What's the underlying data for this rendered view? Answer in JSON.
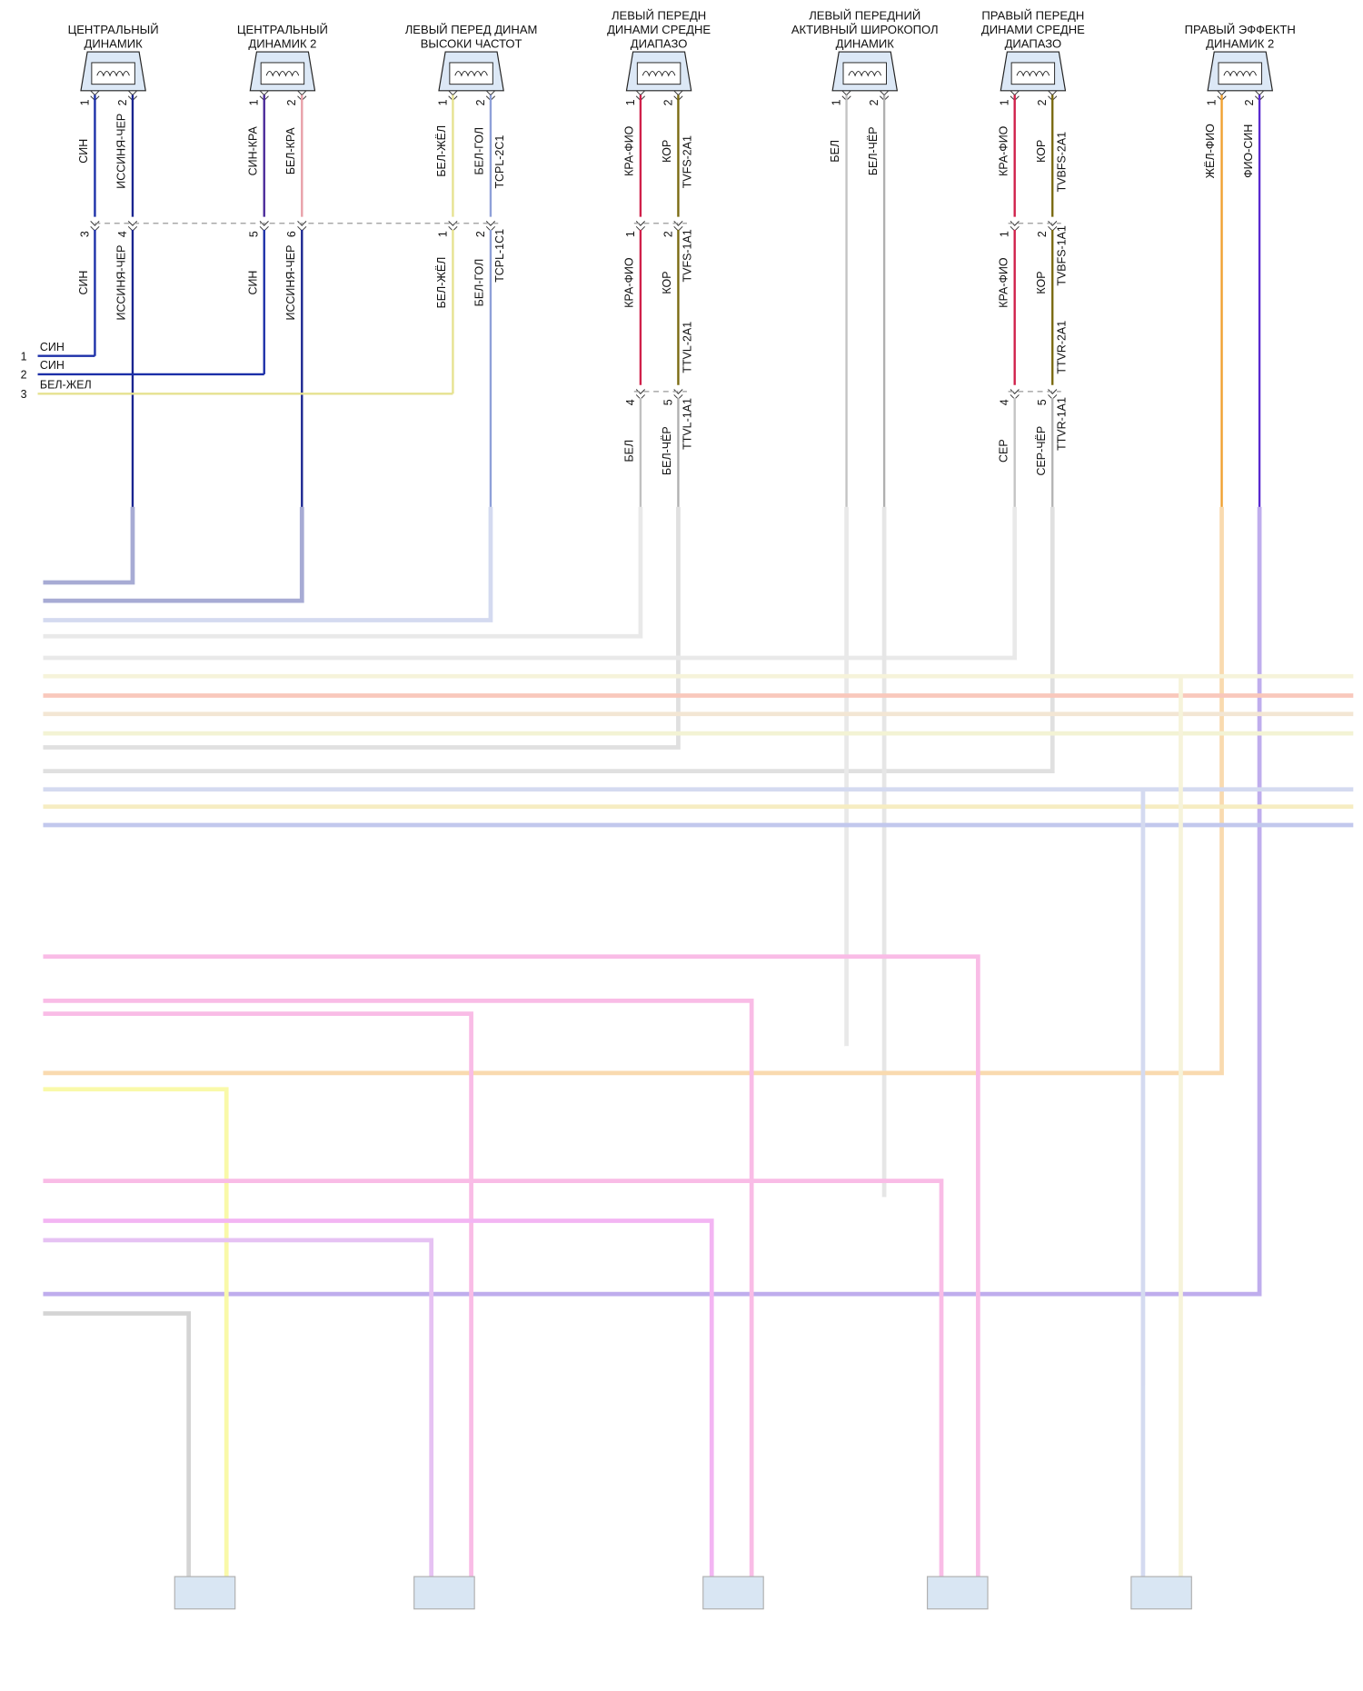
{
  "speakers": [
    {
      "title": [
        "ЦЕНТРАЛЬНЫЙ",
        "ДИНАМИК"
      ],
      "pins": [
        1,
        2
      ],
      "wires": [
        "СИН",
        "ИССИНЯ-ЧЕР"
      ],
      "segments": [
        {
          "pins": [
            3,
            4
          ],
          "wires": [
            "СИН",
            "ИССИНЯ-ЧЕР"
          ]
        }
      ]
    },
    {
      "title": [
        "ЦЕНТРАЛЬНЫЙ",
        "ДИНАМИК 2"
      ],
      "pins": [
        1,
        2
      ],
      "wires": [
        "СИН-КРА",
        "БЕЛ-КРА"
      ],
      "segments": [
        {
          "pins": [
            5,
            6
          ],
          "wires": [
            "СИН",
            "ИССИНЯ-ЧЕР"
          ]
        }
      ]
    },
    {
      "title": [
        "ЛЕВЫЙ ПЕРЕД ДИНАМ",
        "ВЫСОКИ ЧАСТОТ"
      ],
      "pins": [
        1,
        2
      ],
      "wires": [
        "БЕЛ-ЖЁЛ",
        "БЕЛ-ГОЛ"
      ],
      "circuits": [
        "TCPL-2C1"
      ],
      "segments": [
        {
          "pins": [
            1,
            2
          ],
          "wires": [
            "БЕЛ-ЖЁЛ",
            "БЕЛ-ГОЛ"
          ],
          "circuits": [
            "TCPL-1C1"
          ]
        }
      ]
    },
    {
      "title": [
        "ЛЕВЫЙ ПЕРЕДН",
        "ДИНАМИ СРЕДНЕ",
        "ДИАПАЗО"
      ],
      "pins": [
        1,
        2
      ],
      "wires": [
        "КРА-ФИО",
        "КОР"
      ],
      "circuits": [
        "TVFS-2A1"
      ],
      "segments": [
        {
          "pins": [
            1,
            2
          ],
          "wires": [
            "КРА-ФИО",
            "КОР"
          ],
          "circuits": [
            "TVFS-1A1",
            "TTVL-2A1"
          ]
        },
        {
          "pins": [
            4,
            5
          ],
          "wires": [
            "БЕЛ",
            "БЕЛ-ЧЁР"
          ],
          "circuits": [
            "TTVL-1A1"
          ]
        }
      ]
    },
    {
      "title": [
        "ЛЕВЫЙ ПЕРЕДНИЙ",
        "АКТИВНЫЙ ШИРОКОПОЛ",
        "ДИНАМИК"
      ],
      "pins": [
        1,
        2
      ],
      "wires": [
        "БЕЛ",
        "БЕЛ-ЧЁР"
      ],
      "segments": []
    },
    {
      "title": [
        "ПРАВЫЙ ПЕРЕДН",
        "ДИНАМИ СРЕДНЕ",
        "ДИАПАЗО"
      ],
      "pins": [
        1,
        2
      ],
      "wires": [
        "КРА-ФИО",
        "КОР"
      ],
      "circuits": [
        "TVBFS-2A1"
      ],
      "segments": [
        {
          "pins": [
            1,
            2
          ],
          "wires": [
            "КРА-ФИО",
            "КОР"
          ],
          "circuits": [
            "TVBFS-1A1",
            "TTVR-2A1"
          ]
        },
        {
          "pins": [
            4,
            5
          ],
          "wires": [
            "СЕР",
            "СЕР-ЧЁР"
          ],
          "circuits": [
            "TTVR-1A1"
          ]
        }
      ]
    },
    {
      "title": [
        "ПРАВЫЙ ЭФФЕКТН",
        "ДИНАМИК 2"
      ],
      "pins": [
        1,
        2
      ],
      "wires": [
        "ЖЁЛ-ФИО",
        "ФИО-СИН"
      ],
      "segments": []
    }
  ],
  "inputs": [
    {
      "pin": 1,
      "wire": "СИН"
    },
    {
      "pin": 2,
      "wire": "СИН"
    },
    {
      "pin": 3,
      "wire": "БЕЛ-ЖЕЛ"
    }
  ]
}
